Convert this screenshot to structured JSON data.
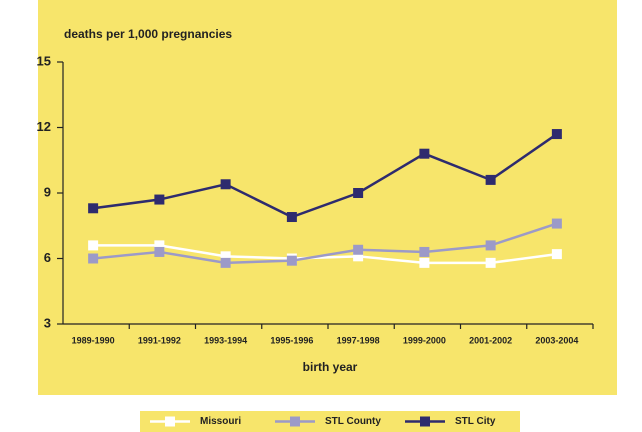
{
  "chart_data": {
    "type": "line",
    "y_axis_label": "deaths per 1,000 pregnancies",
    "x_axis_label": "birth year",
    "categories": [
      "1989-1990",
      "1991-1992",
      "1993-1994",
      "1995-1996",
      "1997-1998",
      "1999-2000",
      "2001-2002",
      "2003-2004"
    ],
    "series": [
      {
        "name": "Missouri",
        "color": "#ffffff",
        "values": [
          6.6,
          6.6,
          6.1,
          6.0,
          6.1,
          5.8,
          5.8,
          6.2
        ]
      },
      {
        "name": "STL County",
        "color": "#9c9ac8",
        "values": [
          6.0,
          6.3,
          5.8,
          5.9,
          6.4,
          6.3,
          6.6,
          7.6
        ]
      },
      {
        "name": "STL City",
        "color": "#2e2b6e",
        "values": [
          8.3,
          8.7,
          9.4,
          7.9,
          9.0,
          10.8,
          9.6,
          11.7
        ]
      }
    ],
    "ylim": [
      3,
      15
    ],
    "yticks": [
      3,
      6,
      9,
      12,
      15
    ],
    "grid": false,
    "legend": "bottom"
  }
}
